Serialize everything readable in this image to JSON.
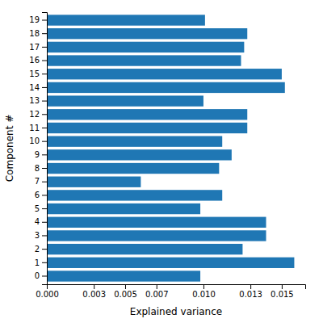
{
  "chart_data": {
    "type": "bar",
    "orientation": "horizontal",
    "xlabel": "Explained variance",
    "ylabel": "Component #",
    "categories": [
      "0",
      "1",
      "2",
      "3",
      "4",
      "5",
      "6",
      "7",
      "8",
      "9",
      "10",
      "11",
      "12",
      "13",
      "14",
      "15",
      "16",
      "17",
      "18",
      "19"
    ],
    "values": [
      0.0098,
      0.0158,
      0.0125,
      0.014,
      0.014,
      0.0098,
      0.0112,
      0.006,
      0.011,
      0.0118,
      0.0112,
      0.0128,
      0.0128,
      0.01,
      0.0152,
      0.015,
      0.0124,
      0.0126,
      0.0128,
      0.0101
    ],
    "color": "#1f77b4",
    "xlim": [
      0,
      0.0165
    ],
    "xticks": [
      {
        "value": 0,
        "label": "0.000"
      },
      0.003,
      0.005,
      0.007,
      {
        "value": 0.01,
        "label": "0.010"
      },
      0.013,
      0.015
    ]
  }
}
